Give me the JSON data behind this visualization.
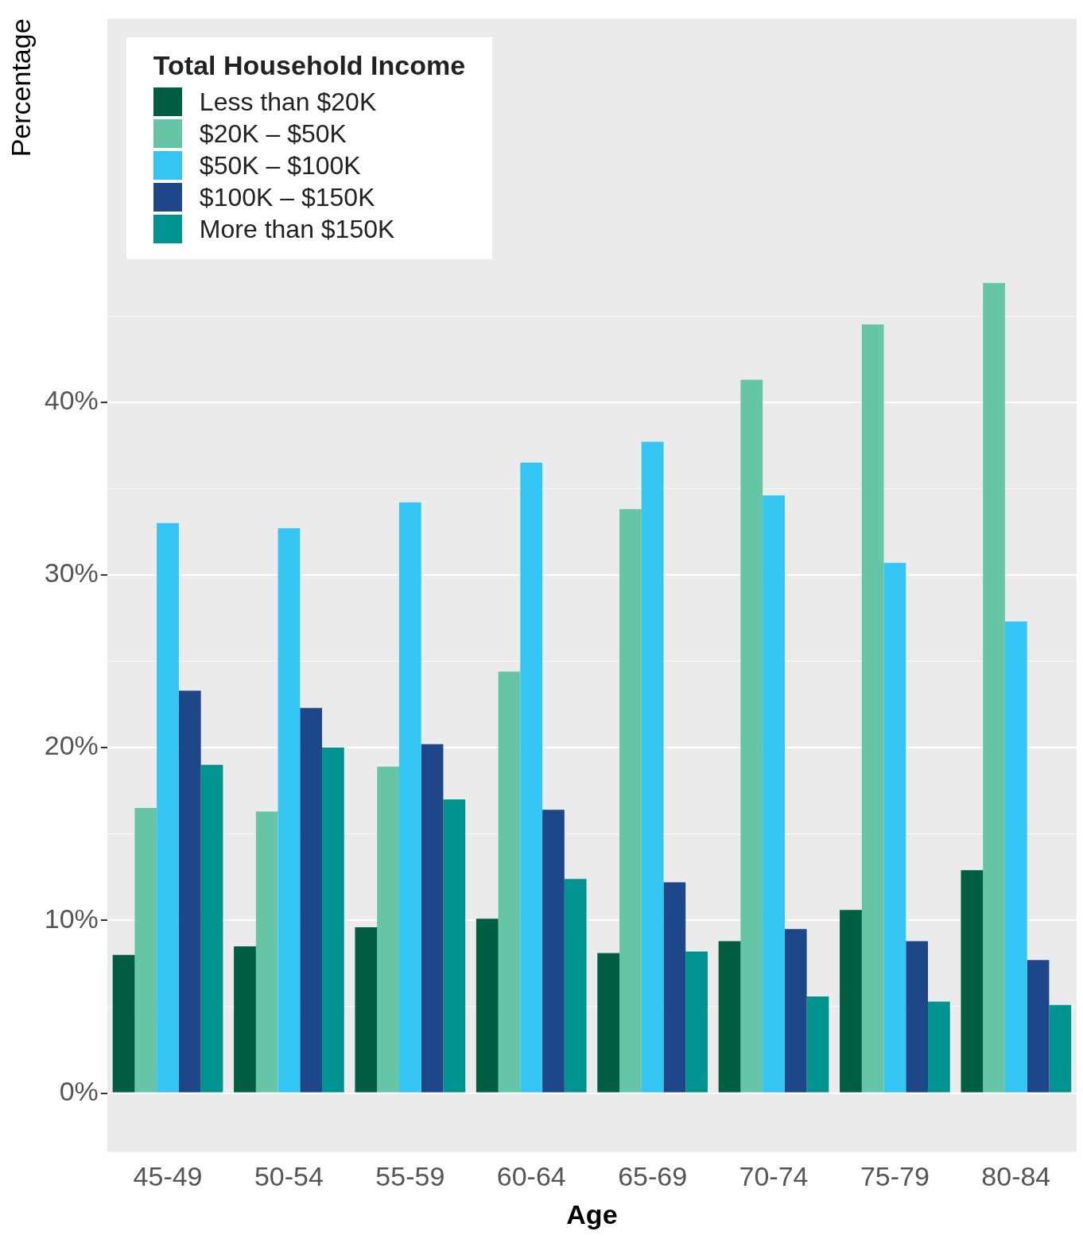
{
  "chart_data": {
    "type": "bar",
    "xlabel": "Age",
    "ylabel": "Percentage",
    "legend_title": "Total Household Income",
    "legend": "top left",
    "grid": "y",
    "categories": [
      "45-49",
      "50-54",
      "55-59",
      "60-64",
      "65-69",
      "70-74",
      "75-79",
      "80-84"
    ],
    "ylim": [
      -3.4,
      62.2
    ],
    "yticks": [
      {
        "value": 0,
        "label": "0%"
      },
      {
        "value": 5,
        "label": null
      },
      {
        "value": 10,
        "label": "10%"
      },
      {
        "value": 15,
        "label": null
      },
      {
        "value": 20,
        "label": "20%"
      },
      {
        "value": 25,
        "label": null
      },
      {
        "value": 30,
        "label": "30%"
      },
      {
        "value": 35,
        "label": null
      },
      {
        "value": 40,
        "label": "40%"
      },
      {
        "value": 45,
        "label": null
      }
    ],
    "series": [
      {
        "name": "Less than $20K",
        "color": "#005e42",
        "values": [
          8.0,
          8.5,
          9.6,
          10.1,
          8.1,
          8.8,
          10.6,
          12.9
        ]
      },
      {
        "name": "$20K – $50K",
        "color": "#66c5a6",
        "values": [
          16.5,
          16.3,
          18.9,
          24.4,
          33.8,
          41.3,
          44.5,
          46.9
        ]
      },
      {
        "name": "$50K – $100K",
        "color": "#33c5f3",
        "values": [
          33.0,
          32.7,
          34.2,
          36.5,
          37.7,
          34.6,
          30.7,
          27.3
        ]
      },
      {
        "name": "$100K – $150K",
        "color": "#1d4788",
        "values": [
          23.3,
          22.3,
          20.2,
          16.4,
          12.2,
          9.5,
          8.8,
          7.7
        ]
      },
      {
        "name": "More than $150K",
        "color": "#009490",
        "values": [
          19.0,
          20.0,
          17.0,
          12.4,
          8.2,
          5.6,
          5.3,
          5.1
        ]
      }
    ]
  }
}
